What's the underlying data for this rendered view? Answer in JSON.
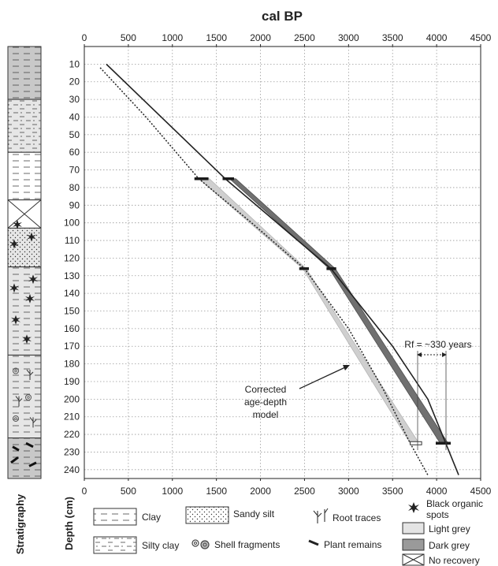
{
  "chart_data": {
    "type": "line",
    "title": "cal BP",
    "ylabel": "Depth (cm)",
    "column_label": "Stratigraphy",
    "xlim": [
      0,
      4500
    ],
    "ylim": [
      245,
      0
    ],
    "x_ticks": [
      0,
      500,
      1000,
      1500,
      2000,
      2500,
      3000,
      3500,
      4000,
      4500
    ],
    "y_ticks": [
      10,
      20,
      30,
      40,
      50,
      60,
      70,
      80,
      90,
      100,
      110,
      120,
      130,
      140,
      150,
      160,
      170,
      180,
      190,
      200,
      210,
      220,
      230,
      240
    ],
    "grid": true,
    "series": [
      {
        "style": "solid",
        "points": [
          [
            250,
            10
          ],
          [
            1600,
            75
          ],
          [
            2800,
            126
          ],
          [
            3500,
            170
          ],
          [
            3900,
            200
          ],
          [
            4250,
            243
          ]
        ]
      },
      {
        "style": "dotted",
        "points": [
          [
            180,
            12
          ],
          [
            700,
            40
          ],
          [
            1300,
            75
          ],
          [
            1900,
            100
          ],
          [
            2500,
            126
          ],
          [
            3000,
            160
          ],
          [
            3400,
            195
          ],
          [
            3700,
            225
          ],
          [
            3900,
            243
          ]
        ]
      }
    ],
    "bands": [
      {
        "shade": "light grey",
        "polygon": [
          [
            1300,
            75
          ],
          [
            1420,
            75
          ],
          [
            2520,
            126
          ],
          [
            3800,
            225
          ],
          [
            3700,
            225
          ],
          [
            2480,
            126
          ]
        ]
      },
      {
        "shade": "dark grey",
        "polygon": [
          [
            1650,
            75
          ],
          [
            1720,
            75
          ],
          [
            2850,
            126
          ],
          [
            4130,
            225
          ],
          [
            4040,
            225
          ],
          [
            2780,
            126
          ]
        ]
      }
    ],
    "date_bars": [
      {
        "x_from": 1250,
        "x_to": 1410,
        "depth": 75
      },
      {
        "x_from": 1570,
        "x_to": 1700,
        "depth": 75
      },
      {
        "x_from": 2440,
        "x_to": 2550,
        "depth": 126
      },
      {
        "x_from": 2750,
        "x_to": 2860,
        "depth": 126
      },
      {
        "x_from": 3990,
        "x_to": 4160,
        "depth": 225
      }
    ],
    "annotations": {
      "model_label": [
        "Corrected",
        "age-depth",
        "model"
      ],
      "rf_label": "Rf = ~330 years"
    },
    "stratigraphy": [
      {
        "top": 0,
        "bottom": 30,
        "unit": "clay",
        "shade": "dark grey"
      },
      {
        "top": 30,
        "bottom": 60,
        "unit": "silty clay",
        "shade": "light grey"
      },
      {
        "top": 60,
        "bottom": 87,
        "unit": "clay",
        "shade": "white"
      },
      {
        "top": 87,
        "bottom": 103,
        "unit": "no recovery",
        "shade": "white"
      },
      {
        "top": 103,
        "bottom": 125,
        "unit": "sandy silt",
        "shade": "light grey"
      },
      {
        "top": 125,
        "bottom": 175,
        "unit": "clay",
        "shade": "light grey"
      },
      {
        "top": 175,
        "bottom": 222,
        "unit": "clay",
        "shade": "light grey"
      },
      {
        "top": 222,
        "bottom": 245,
        "unit": "clay",
        "shade": "dark grey"
      }
    ]
  },
  "legend": {
    "clay": "Clay",
    "silty_clay": "Silty clay",
    "sandy_silt": "Sandy silt",
    "shell_fragments": "Shell fragments",
    "root_traces": "Root traces",
    "plant_remains": "Plant remains",
    "black_spots": [
      "Black organic",
      "spots"
    ],
    "light_grey": "Light grey",
    "dark_grey": "Dark grey",
    "no_recovery": "No recovery"
  },
  "colors": {
    "dark_band": "#707070",
    "light_band": "#cfcfcf",
    "column_dark": "#c8c8c8",
    "column_light": "#e6e6e6",
    "grid": "#9a9a9a"
  }
}
